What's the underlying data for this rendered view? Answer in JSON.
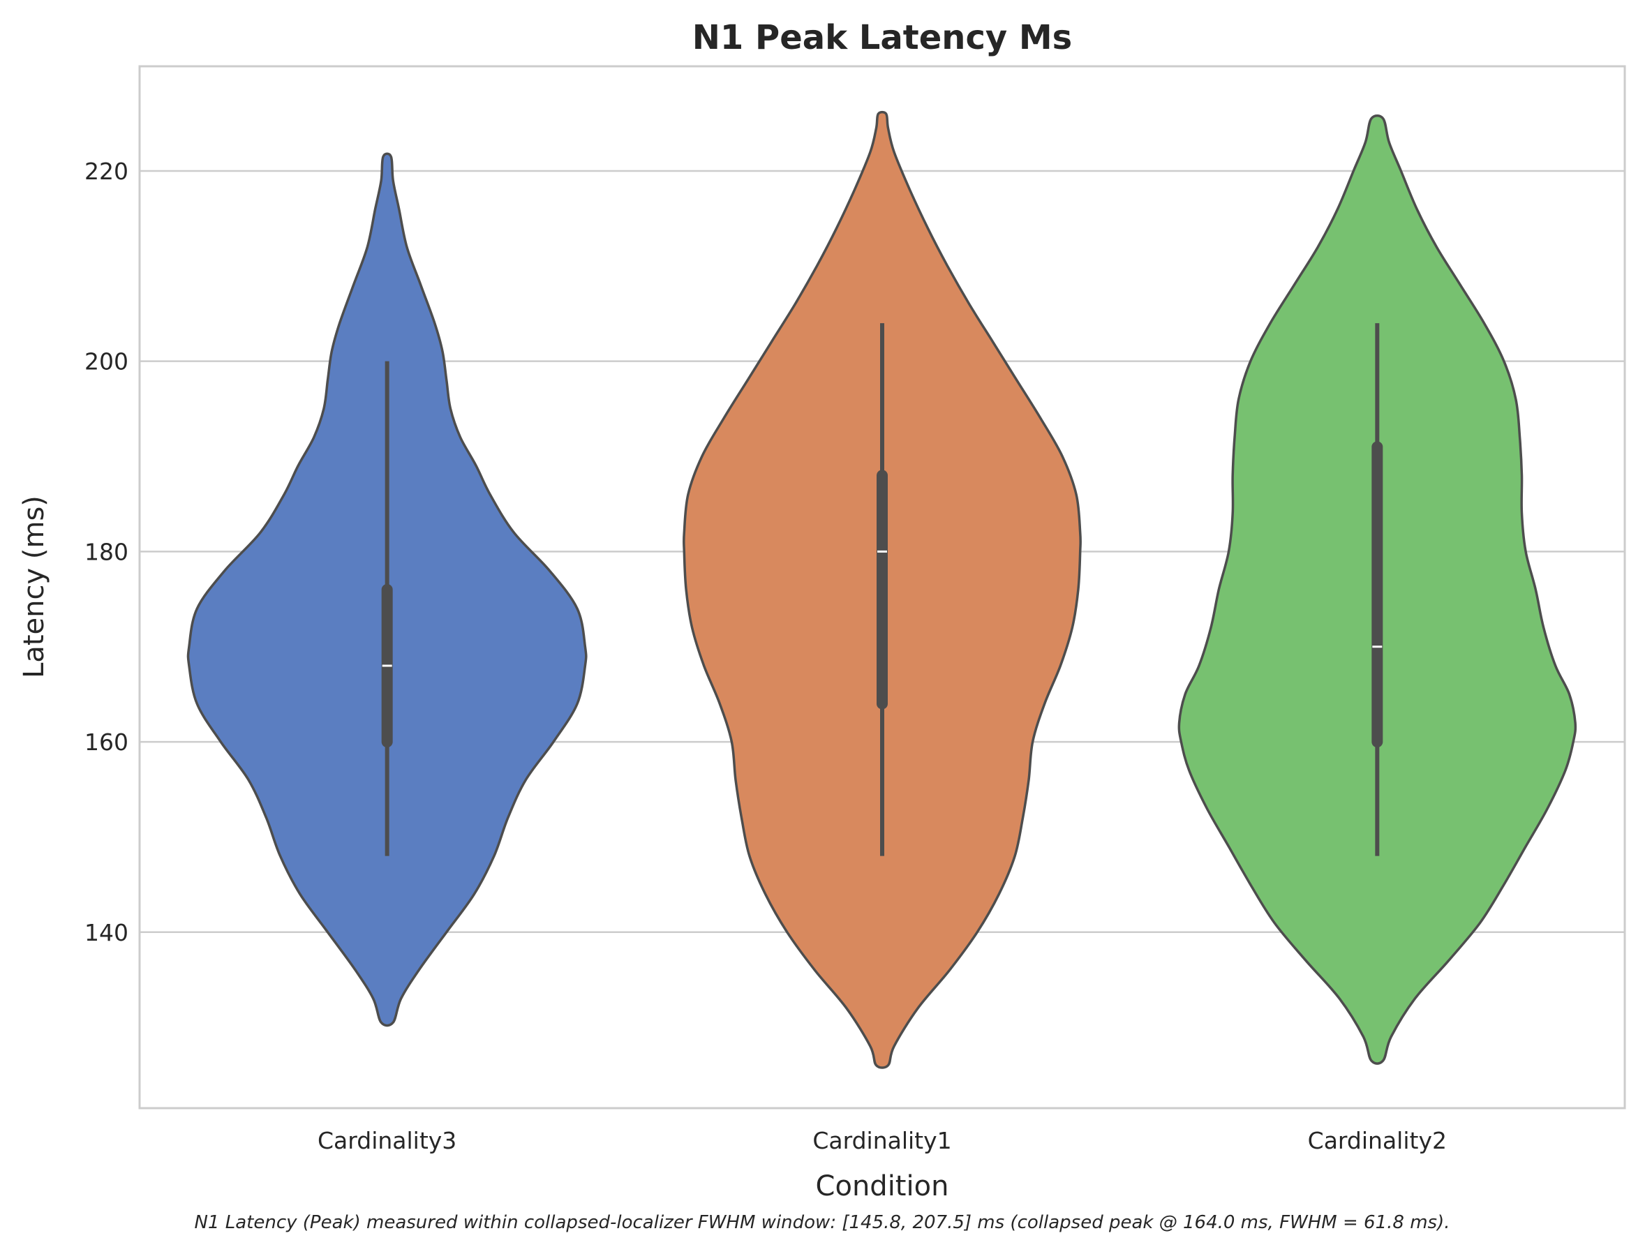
{
  "chart_data": {
    "type": "violin",
    "title": "N1 Peak Latency Ms",
    "xlabel": "Condition",
    "ylabel": "Latency (ms)",
    "ylim": [
      121.5,
      231
    ],
    "yticks": [
      140,
      160,
      180,
      200,
      220
    ],
    "grid": true,
    "caption": "N1 Latency (Peak) measured within collapsed-localizer FWHM window: [145.8, 207.5] ms (collapsed peak @ 164.0 ms, FWHM = 61.8 ms).",
    "categories": [
      "Cardinality3",
      "Cardinality1",
      "Cardinality2"
    ],
    "series": [
      {
        "category": "Cardinality3",
        "color": "#5b7ec1",
        "min": 148,
        "q1": 160,
        "median": 168,
        "q3": 176,
        "max": 200,
        "density": [
          [
            130.5,
            0.03
          ],
          [
            133,
            0.07
          ],
          [
            136,
            0.16
          ],
          [
            140,
            0.3
          ],
          [
            144,
            0.44
          ],
          [
            148,
            0.54
          ],
          [
            152,
            0.61
          ],
          [
            156,
            0.7
          ],
          [
            160,
            0.84
          ],
          [
            164,
            0.96
          ],
          [
            168,
            1.0
          ],
          [
            170,
            1.0
          ],
          [
            174,
            0.96
          ],
          [
            178,
            0.82
          ],
          [
            182,
            0.64
          ],
          [
            186,
            0.52
          ],
          [
            189,
            0.45
          ],
          [
            192,
            0.37
          ],
          [
            195,
            0.32
          ],
          [
            198,
            0.3
          ],
          [
            201,
            0.28
          ],
          [
            204,
            0.24
          ],
          [
            208,
            0.17
          ],
          [
            212,
            0.1
          ],
          [
            216,
            0.06
          ],
          [
            219,
            0.03
          ],
          [
            221.5,
            0.02
          ]
        ]
      },
      {
        "category": "Cardinality1",
        "color": "#d8895e",
        "min": 148,
        "q1": 164,
        "median": 180,
        "q3": 188,
        "max": 204,
        "density": [
          [
            126,
            0.03
          ],
          [
            128,
            0.06
          ],
          [
            132,
            0.18
          ],
          [
            136,
            0.34
          ],
          [
            140,
            0.48
          ],
          [
            144,
            0.59
          ],
          [
            148,
            0.67
          ],
          [
            152,
            0.71
          ],
          [
            156,
            0.74
          ],
          [
            160,
            0.76
          ],
          [
            164,
            0.82
          ],
          [
            168,
            0.9
          ],
          [
            172,
            0.96
          ],
          [
            176,
            0.99
          ],
          [
            180,
            1.0
          ],
          [
            182,
            1.0
          ],
          [
            186,
            0.98
          ],
          [
            190,
            0.91
          ],
          [
            194,
            0.8
          ],
          [
            198,
            0.68
          ],
          [
            202,
            0.56
          ],
          [
            206,
            0.44
          ],
          [
            210,
            0.33
          ],
          [
            214,
            0.23
          ],
          [
            218,
            0.14
          ],
          [
            222,
            0.06
          ],
          [
            224.5,
            0.03
          ],
          [
            226,
            0.02
          ]
        ]
      },
      {
        "category": "Cardinality2",
        "color": "#77c170",
        "min": 148,
        "q1": 160,
        "median": 170,
        "q3": 191,
        "max": 204,
        "density": [
          [
            126.5,
            0.03
          ],
          [
            129,
            0.07
          ],
          [
            133,
            0.19
          ],
          [
            137,
            0.36
          ],
          [
            141,
            0.52
          ],
          [
            145,
            0.64
          ],
          [
            149,
            0.75
          ],
          [
            153,
            0.86
          ],
          [
            157,
            0.95
          ],
          [
            160,
            0.99
          ],
          [
            162,
            1.0
          ],
          [
            165,
            0.97
          ],
          [
            168,
            0.9
          ],
          [
            172,
            0.84
          ],
          [
            176,
            0.8
          ],
          [
            180,
            0.75
          ],
          [
            184,
            0.73
          ],
          [
            188,
            0.73
          ],
          [
            192,
            0.72
          ],
          [
            196,
            0.7
          ],
          [
            200,
            0.64
          ],
          [
            204,
            0.54
          ],
          [
            208,
            0.42
          ],
          [
            212,
            0.3
          ],
          [
            216,
            0.2
          ],
          [
            220,
            0.12
          ],
          [
            223,
            0.06
          ],
          [
            225.5,
            0.03
          ]
        ]
      }
    ]
  }
}
